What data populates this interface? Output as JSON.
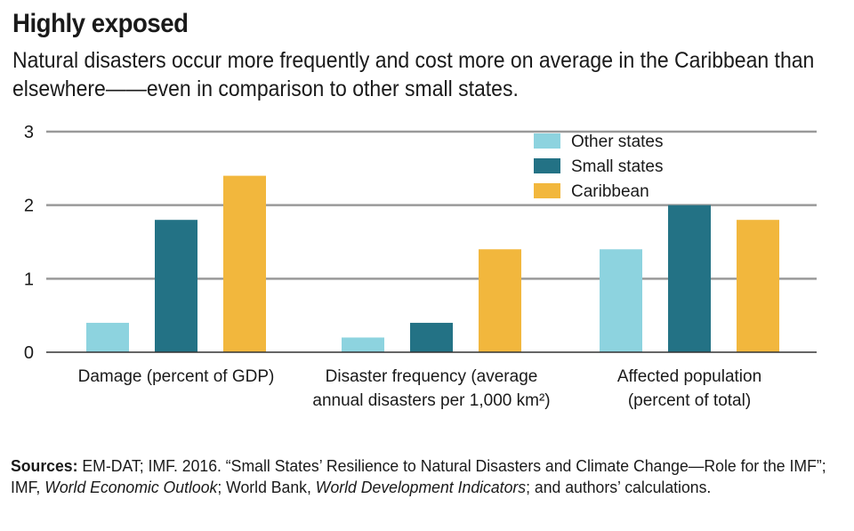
{
  "header": {
    "title": "Highly exposed",
    "subtitle": "Natural disasters occur more frequently and cost more on average in the Caribbean than elsewhere——even in comparison to other small states."
  },
  "sources": {
    "label": "Sources:",
    "text1": " EM-DAT; IMF. 2016. “Small States’ Resilience to Natural Disasters and Climate Change—Role for the IMF”; IMF, ",
    "italic1": "World Economic Outlook",
    "text2": "; World Bank, ",
    "italic2": "World Development Indicators",
    "text3": "; and authors’ calculations."
  },
  "colors": {
    "other_states": "#8dd3df",
    "small_states": "#237285",
    "caribbean": "#f2b73d",
    "gridline": "#999999"
  },
  "chart_data": {
    "type": "bar",
    "categories": [
      [
        "Damage (percent of GDP)"
      ],
      [
        "Disaster frequency (average",
        "annual disasters per 1,000 km²)"
      ],
      [
        "Affected population",
        "(percent of total)"
      ]
    ],
    "series": [
      {
        "name": "Other states",
        "values": [
          0.4,
          0.2,
          1.4
        ]
      },
      {
        "name": "Small states",
        "values": [
          1.8,
          0.4,
          2.0
        ]
      },
      {
        "name": "Caribbean",
        "values": [
          2.4,
          1.4,
          1.8
        ]
      }
    ],
    "ylim": [
      0,
      3
    ],
    "yticks": [
      0,
      1,
      2,
      3
    ],
    "grid": true,
    "legend_position": "top-right"
  }
}
